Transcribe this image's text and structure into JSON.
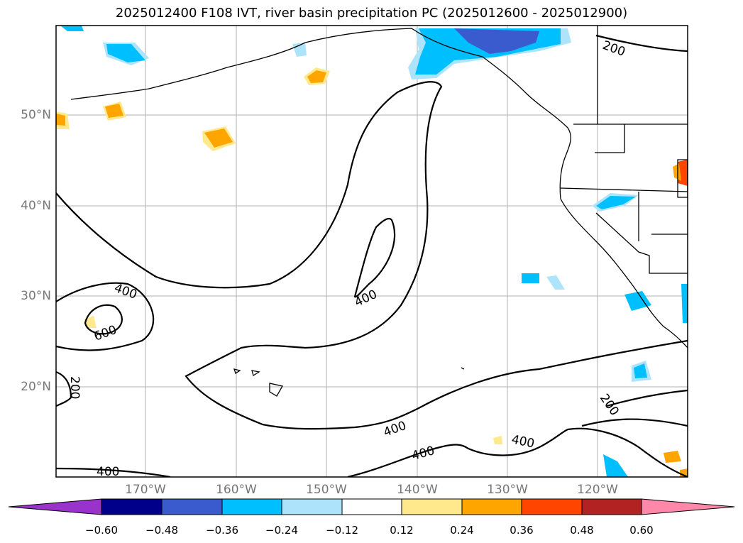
{
  "title": "2025012400 F108 IVT, river basin precipitation PC (2025012600 - 2025012900)",
  "map": {
    "lat_labels": [
      "50°N",
      "40°N",
      "30°N",
      "20°N"
    ],
    "lon_labels": [
      "170°W",
      "160°W",
      "150°W",
      "140°W",
      "130°W",
      "120°W"
    ],
    "contour_labels": [
      "200",
      "400",
      "400",
      "600",
      "200",
      "400",
      "200",
      "400",
      "400",
      "200",
      "400"
    ]
  },
  "colorbar": {
    "colors": [
      "#9933cc",
      "#00008b",
      "#3a5bcd",
      "#00bfff",
      "#aee4fb",
      "#ffffff",
      "#ffe98c",
      "#ffa500",
      "#ff4500",
      "#b22222",
      "#ff88aa"
    ],
    "ticks": [
      "−0.60",
      "−0.48",
      "−0.36",
      "−0.24",
      "−0.12",
      "0.12",
      "0.24",
      "0.36",
      "0.48",
      "0.60"
    ]
  }
}
